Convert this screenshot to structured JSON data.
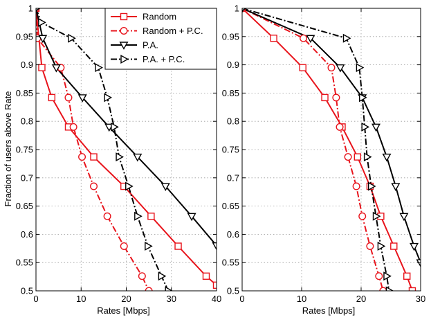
{
  "chart_data": [
    {
      "type": "line",
      "xlabel": "Rates [Mbps]",
      "ylabel": "Fraction of users above Rate",
      "xlim": [
        0,
        40
      ],
      "ylim": [
        0.5,
        1
      ],
      "xticks": [
        "0",
        "10",
        "20",
        "30",
        "40"
      ],
      "yticks": [
        "0.5",
        "0.55",
        "0.6",
        "0.65",
        "0.7",
        "0.75",
        "0.8",
        "0.85",
        "0.9",
        "0.95",
        "1"
      ],
      "grid": true,
      "legend_position": "top-right",
      "series": [
        {
          "name": "Random",
          "color": "#e8141c",
          "dash": "solid",
          "marker": "square",
          "x": [
            0,
            1.3,
            3.5,
            7.2,
            12.8,
            19.5,
            25.5,
            31.5,
            37.7,
            40
          ],
          "y": [
            1,
            0.895,
            0.842,
            0.79,
            0.737,
            0.685,
            0.632,
            0.579,
            0.526,
            0.51
          ]
        },
        {
          "name": "Random + P.C.",
          "color": "#e8141c",
          "dash": "dashdot",
          "marker": "circle",
          "x": [
            0,
            0.3,
            5.5,
            7.2,
            8.3,
            10.2,
            12.8,
            15.8,
            19.5,
            23.5,
            25
          ],
          "y": [
            1,
            0.947,
            0.895,
            0.842,
            0.79,
            0.737,
            0.685,
            0.632,
            0.579,
            0.526,
            0.5
          ]
        },
        {
          "name": "P.A.",
          "color": "#000000",
          "dash": "solid",
          "marker": "triangle-down",
          "x": [
            0,
            1.5,
            4.5,
            10.3,
            16.2,
            22.5,
            28.7,
            34.5,
            40
          ],
          "y": [
            1,
            0.947,
            0.895,
            0.842,
            0.79,
            0.737,
            0.685,
            0.632,
            0.58
          ]
        },
        {
          "name": "P.A. + P.C.",
          "color": "#000000",
          "dash": "dashdot",
          "marker": "triangle-right",
          "x": [
            0,
            1.2,
            7.8,
            13.8,
            15.8,
            17.3,
            18.4,
            20.5,
            22.5,
            24.8,
            27.8,
            29.3
          ],
          "y": [
            1,
            0.975,
            0.947,
            0.895,
            0.842,
            0.79,
            0.737,
            0.685,
            0.632,
            0.579,
            0.526,
            0.5
          ]
        }
      ]
    },
    {
      "type": "line",
      "xlabel": "Rates [Mbps]",
      "ylabel": "",
      "xlim": [
        0,
        30
      ],
      "ylim": [
        0.5,
        1
      ],
      "xticks": [
        "0",
        "10",
        "20",
        "30"
      ],
      "yticks": [
        "0.5",
        "0.55",
        "0.6",
        "0.65",
        "0.7",
        "0.75",
        "0.8",
        "0.85",
        "0.9",
        "0.95",
        "1"
      ],
      "grid": true,
      "series": [
        {
          "name": "Random",
          "color": "#e8141c",
          "dash": "solid",
          "marker": "square",
          "x": [
            0,
            5.3,
            10.2,
            13.9,
            16.8,
            19.4,
            21.5,
            23.3,
            25.5,
            27.7,
            28.6
          ],
          "y": [
            1,
            0.947,
            0.895,
            0.842,
            0.79,
            0.737,
            0.685,
            0.632,
            0.579,
            0.526,
            0.5
          ]
        },
        {
          "name": "Random + P.C.",
          "color": "#e8141c",
          "dash": "dashdot",
          "marker": "circle",
          "x": [
            0,
            10.3,
            15,
            15.8,
            16.4,
            17.8,
            19.2,
            20.2,
            21.5,
            23,
            23.7
          ],
          "y": [
            1,
            0.947,
            0.895,
            0.842,
            0.79,
            0.737,
            0.685,
            0.632,
            0.579,
            0.526,
            0.5
          ]
        },
        {
          "name": "P.A.",
          "color": "#000000",
          "dash": "solid",
          "marker": "triangle-down",
          "x": [
            0,
            11.5,
            16.5,
            20.2,
            22.5,
            24.3,
            25.8,
            27.2,
            28.9,
            30
          ],
          "y": [
            1,
            0.947,
            0.895,
            0.842,
            0.79,
            0.737,
            0.685,
            0.632,
            0.579,
            0.55
          ]
        },
        {
          "name": "P.A. + P.C.",
          "color": "#000000",
          "dash": "dashdot",
          "marker": "triangle-right",
          "x": [
            0,
            17.5,
            19.7,
            20.2,
            20.6,
            21,
            21.7,
            22.5,
            23.3,
            24.3,
            24.7
          ],
          "y": [
            1,
            0.947,
            0.895,
            0.842,
            0.79,
            0.737,
            0.685,
            0.632,
            0.579,
            0.526,
            0.5
          ]
        }
      ]
    }
  ]
}
